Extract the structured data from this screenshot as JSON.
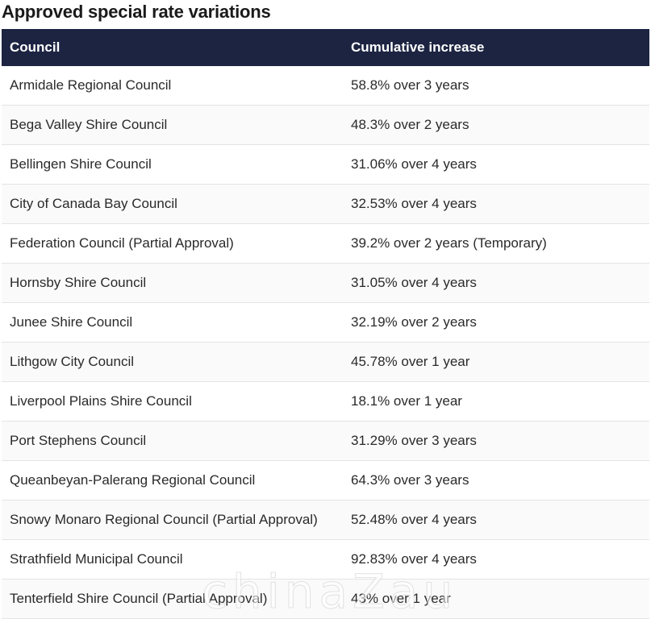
{
  "title": "Approved special rate variations",
  "table": {
    "headers": [
      "Council",
      "Cumulative increase"
    ],
    "rows": [
      [
        "Armidale Regional Council",
        "58.8% over 3 years"
      ],
      [
        "Bega Valley Shire Council",
        "48.3% over 2 years"
      ],
      [
        "Bellingen Shire Council",
        "31.06% over 4 years"
      ],
      [
        "City of Canada Bay Council",
        "32.53% over 4 years"
      ],
      [
        "Federation Council (Partial Approval)",
        "39.2% over 2 years (Temporary)"
      ],
      [
        "Hornsby Shire Council",
        "31.05% over 4 years"
      ],
      [
        "Junee Shire Council",
        "32.19% over 2 years"
      ],
      [
        "Lithgow City Council",
        "45.78% over 1 year"
      ],
      [
        "Liverpool Plains Shire Council",
        "18.1% over 1 year"
      ],
      [
        "Port Stephens Council",
        "31.29% over 3 years"
      ],
      [
        "Queanbeyan-Palerang Regional Council",
        "64.3% over 3 years"
      ],
      [
        "Snowy Monaro Regional Council (Partial Approval)",
        "52.48% over 4 years"
      ],
      [
        "Strathfield Municipal Council",
        "92.83% over 4 years"
      ],
      [
        "Tenterfield Shire Council (Partial Approval)",
        "43% over 1 year"
      ]
    ]
  },
  "watermark": "chinaZau",
  "colors": {
    "header_bg": "#1c2442",
    "header_text": "#ffffff",
    "row_border": "#e4e4e4"
  }
}
